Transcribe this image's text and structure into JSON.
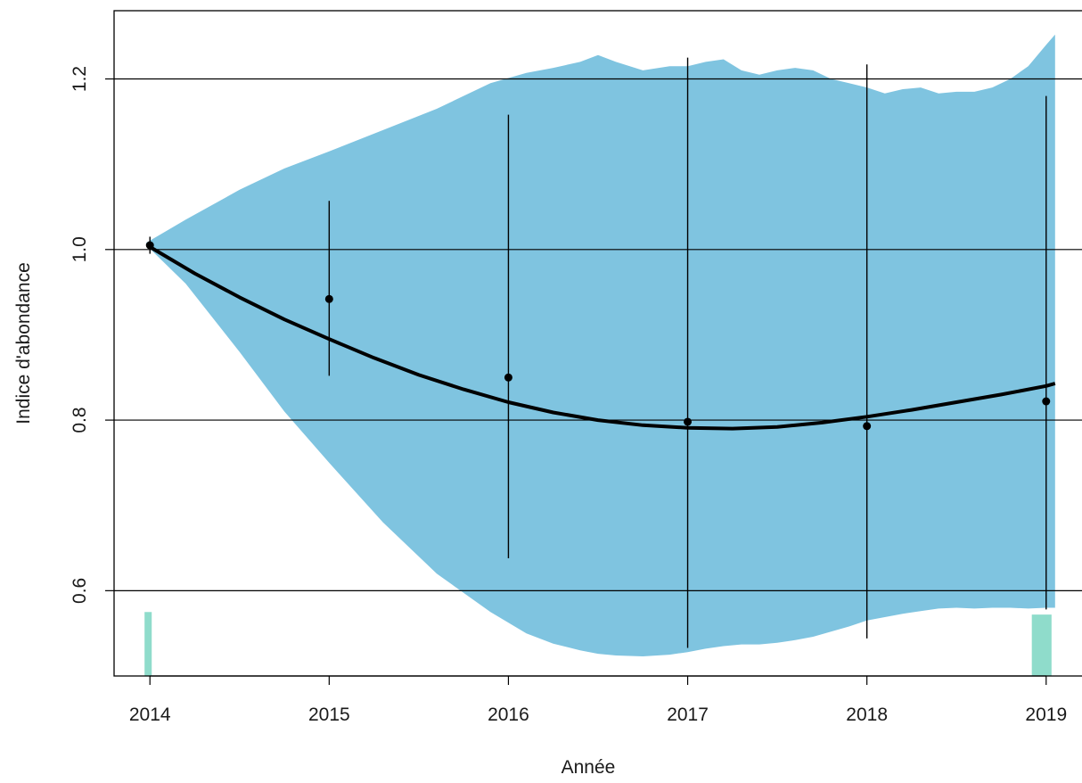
{
  "chart_data": {
    "type": "line",
    "title": "",
    "xlabel": "Année",
    "ylabel": "Indice d'abondance",
    "xlim": [
      2013.8,
      2019.2
    ],
    "ylim": [
      0.5,
      1.28
    ],
    "x_ticks": [
      2014,
      2015,
      2016,
      2017,
      2018,
      2019
    ],
    "y_ticks": [
      0.6,
      0.8,
      1.0,
      1.2
    ],
    "x_tick_labels": [
      "2014",
      "2015",
      "2016",
      "2017",
      "2018",
      "2019"
    ],
    "y_tick_labels": [
      "0.6",
      "0.8",
      "1.0",
      "1.2"
    ],
    "grid": "horizontal",
    "colors": {
      "band": "#7fc4e0",
      "trend": "#000000",
      "points": "#000000",
      "rug": "#8fdccb",
      "grid": "#000000"
    },
    "confidence_band": {
      "x": [
        2013.98,
        2014.2,
        2014.5,
        2014.75,
        2015.0,
        2015.3,
        2015.6,
        2015.9,
        2016.1,
        2016.25,
        2016.4,
        2016.5,
        2016.6,
        2016.75,
        2016.9,
        2017.0,
        2017.1,
        2017.2,
        2017.3,
        2017.4,
        2017.5,
        2017.6,
        2017.7,
        2017.8,
        2017.9,
        2018.0,
        2018.1,
        2018.2,
        2018.3,
        2018.4,
        2018.5,
        2018.6,
        2018.7,
        2018.8,
        2018.9,
        2019.0,
        2019.05
      ],
      "upper": [
        1.008,
        1.035,
        1.07,
        1.095,
        1.115,
        1.14,
        1.165,
        1.195,
        1.207,
        1.213,
        1.22,
        1.228,
        1.22,
        1.21,
        1.215,
        1.215,
        1.22,
        1.223,
        1.21,
        1.205,
        1.21,
        1.213,
        1.21,
        1.2,
        1.195,
        1.19,
        1.183,
        1.188,
        1.19,
        1.183,
        1.185,
        1.185,
        1.19,
        1.2,
        1.215,
        1.24,
        1.252
      ],
      "lower": [
        1.005,
        0.96,
        0.88,
        0.81,
        0.75,
        0.68,
        0.62,
        0.575,
        0.55,
        0.538,
        0.53,
        0.526,
        0.524,
        0.523,
        0.525,
        0.528,
        0.532,
        0.535,
        0.537,
        0.537,
        0.539,
        0.542,
        0.546,
        0.552,
        0.558,
        0.565,
        0.569,
        0.573,
        0.576,
        0.579,
        0.58,
        0.579,
        0.58,
        0.58,
        0.579,
        0.58,
        0.58
      ]
    },
    "trend": {
      "x": [
        2014.0,
        2014.25,
        2014.5,
        2014.75,
        2015.0,
        2015.25,
        2015.5,
        2015.75,
        2016.0,
        2016.25,
        2016.5,
        2016.75,
        2017.0,
        2017.25,
        2017.5,
        2017.75,
        2018.0,
        2018.25,
        2018.5,
        2018.75,
        2019.0,
        2019.05
      ],
      "y": [
        1.003,
        0.972,
        0.944,
        0.918,
        0.895,
        0.873,
        0.853,
        0.836,
        0.821,
        0.809,
        0.8,
        0.794,
        0.791,
        0.79,
        0.792,
        0.797,
        0.804,
        0.812,
        0.821,
        0.83,
        0.84,
        0.843
      ]
    },
    "series": [
      {
        "x": [
          2014,
          2015,
          2016,
          2017,
          2018,
          2019
        ],
        "y": [
          1.005,
          0.942,
          0.85,
          0.798,
          0.793,
          0.822
        ],
        "lower": [
          0.995,
          0.852,
          0.638,
          0.533,
          0.544,
          0.578
        ],
        "upper": [
          1.015,
          1.057,
          1.158,
          1.225,
          1.217,
          1.18
        ]
      }
    ],
    "rug": [
      {
        "x_start": 2013.97,
        "x_end": 2014.01,
        "top": 0.575
      },
      {
        "x_start": 2018.92,
        "x_end": 2019.03,
        "top": 0.572
      }
    ]
  }
}
